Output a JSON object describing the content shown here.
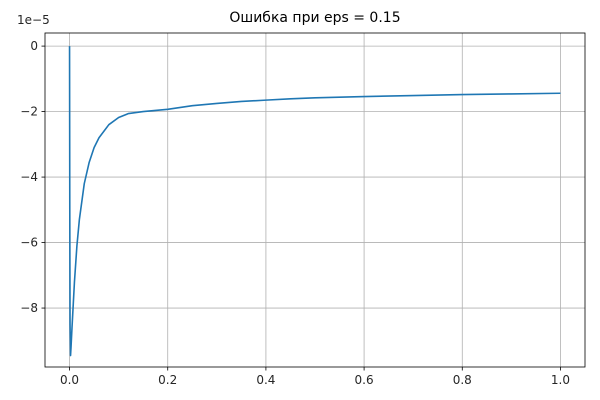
{
  "chart_data": {
    "type": "line",
    "title": "Ошибка при eps = 0.15",
    "xlabel": "",
    "ylabel": "",
    "y_offset_label": "1e−5",
    "y_scale": 1e-05,
    "xlim": [
      -0.05,
      1.05
    ],
    "ylim": [
      -9.8,
      0.4
    ],
    "grid": true,
    "x_ticks": [
      {
        "value": 0.0,
        "label": "0.0"
      },
      {
        "value": 0.2,
        "label": "0.2"
      },
      {
        "value": 0.4,
        "label": "0.4"
      },
      {
        "value": 0.6,
        "label": "0.6"
      },
      {
        "value": 0.8,
        "label": "0.8"
      },
      {
        "value": 1.0,
        "label": "1.0"
      }
    ],
    "y_ticks": [
      {
        "value": 0,
        "label": "0"
      },
      {
        "value": -2,
        "label": "−2"
      },
      {
        "value": -4,
        "label": "−4"
      },
      {
        "value": -6,
        "label": "−6"
      },
      {
        "value": -8,
        "label": "−8"
      }
    ],
    "series": [
      {
        "color": "#1f77b4",
        "x": [
          0.0,
          0.0005,
          0.001,
          0.002,
          0.003,
          0.005,
          0.0075,
          0.01,
          0.015,
          0.02,
          0.03,
          0.04,
          0.05,
          0.06,
          0.08,
          0.1,
          0.12,
          0.15,
          0.2,
          0.25,
          0.3,
          0.35,
          0.4,
          0.45,
          0.5,
          0.6,
          0.7,
          0.8,
          0.9,
          1.0
        ],
        "y": [
          0.0,
          -5.0,
          -8.5,
          -9.45,
          -9.2,
          -8.6,
          -7.9,
          -7.2,
          -6.1,
          -5.3,
          -4.2,
          -3.55,
          -3.1,
          -2.8,
          -2.4,
          -2.18,
          -2.06,
          -2.0,
          -1.93,
          -1.82,
          -1.75,
          -1.69,
          -1.65,
          -1.61,
          -1.58,
          -1.54,
          -1.51,
          -1.48,
          -1.46,
          -1.44
        ]
      }
    ]
  }
}
